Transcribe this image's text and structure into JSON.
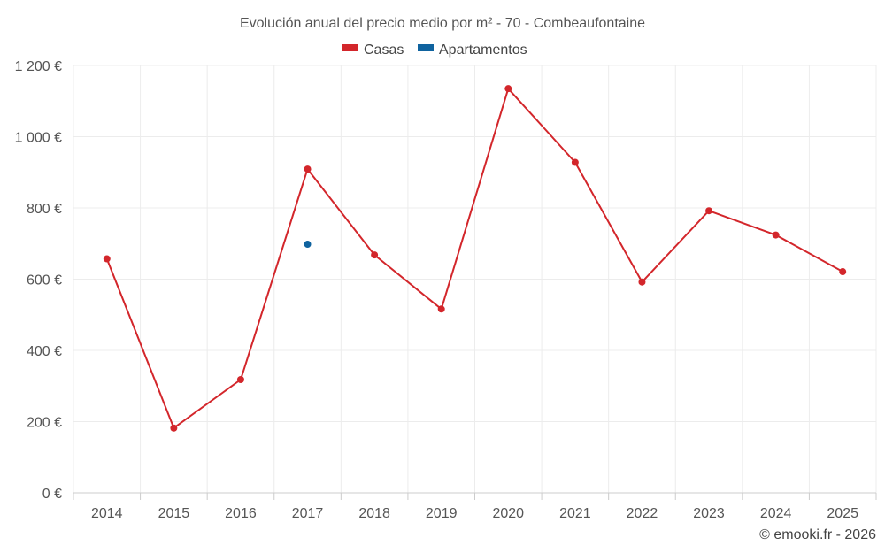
{
  "chart_data": {
    "type": "line",
    "title": "Evolución anual del precio medio por m² - 70 - Combeaufontaine",
    "categories": [
      "2014",
      "2015",
      "2016",
      "2017",
      "2018",
      "2019",
      "2020",
      "2021",
      "2022",
      "2023",
      "2024",
      "2025"
    ],
    "ylim": [
      0,
      1200
    ],
    "yticks": [
      0,
      200,
      400,
      600,
      800,
      1000,
      1200
    ],
    "ytick_labels": [
      "0 €",
      "200 €",
      "400 €",
      "600 €",
      "800 €",
      "1 000 €",
      "1 200 €"
    ],
    "grid": true,
    "legend_position": "top-center",
    "series": [
      {
        "name": "Casas",
        "color": "#d3262b",
        "values": [
          657,
          182,
          318,
          909,
          668,
          516,
          1135,
          928,
          592,
          792,
          724,
          621
        ]
      },
      {
        "name": "Apartamentos",
        "color": "#0f639f",
        "values": [
          null,
          null,
          null,
          698,
          null,
          null,
          null,
          null,
          null,
          null,
          null,
          null
        ]
      }
    ]
  },
  "credit": "© emooki.fr - 2026"
}
